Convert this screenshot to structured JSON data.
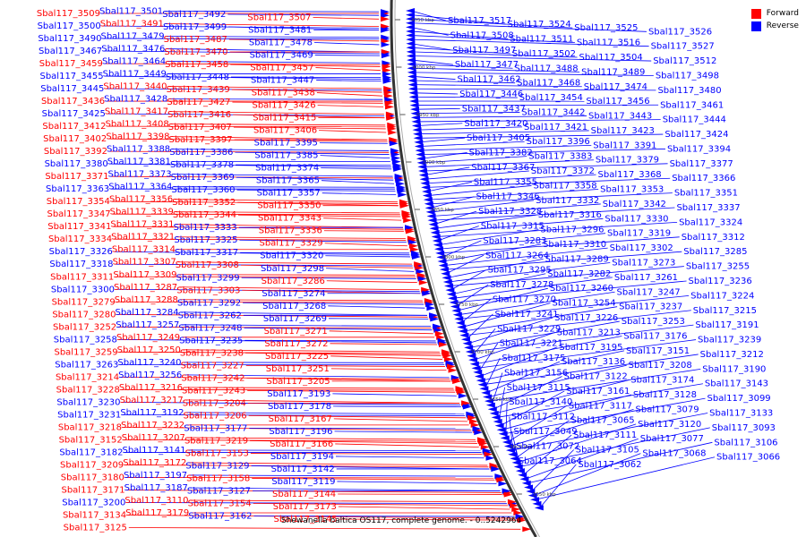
{
  "caption": "Shewanella baltica OS117, complete genome. - 0..5242964",
  "legend": [
    {
      "label": "Forward",
      "color": "#ff0000"
    },
    {
      "label": "Reverse",
      "color": "#0000ff"
    }
  ],
  "scale_ticks": [
    "4050 kbp",
    "4000 kbp",
    "3950 kbp",
    "3900 kbp",
    "3850 kbp",
    "3800 kbp",
    "3750 kbp",
    "3700 kbp",
    "3650 kbp",
    "3600 kbp",
    "3550 kbp"
  ],
  "left_genes": [
    {
      "name": "Sbal117_3509",
      "strand": "F"
    },
    {
      "name": "Sbal117_3501",
      "strand": "R"
    },
    {
      "name": "Sbal117_3492",
      "strand": "R"
    },
    {
      "name": "Sbal117_3507",
      "strand": "F"
    },
    {
      "name": "Sbal117_3500",
      "strand": "R"
    },
    {
      "name": "Sbal117_3491",
      "strand": "F"
    },
    {
      "name": "Sbal117_3499",
      "strand": "R"
    },
    {
      "name": "Sbal117_3481",
      "strand": "R"
    },
    {
      "name": "Sbal117_3490",
      "strand": "R"
    },
    {
      "name": "Sbal117_3479",
      "strand": "R"
    },
    {
      "name": "Sbal117_3487",
      "strand": "F"
    },
    {
      "name": "Sbal117_3478",
      "strand": "R"
    },
    {
      "name": "Sbal117_3467",
      "strand": "R"
    },
    {
      "name": "Sbal117_3476",
      "strand": "R"
    },
    {
      "name": "Sbal117_3470",
      "strand": "F"
    },
    {
      "name": "Sbal117_3469",
      "strand": "R"
    },
    {
      "name": "Sbal117_3459",
      "strand": "F"
    },
    {
      "name": "Sbal117_3464",
      "strand": "R"
    },
    {
      "name": "Sbal117_3458",
      "strand": "F"
    },
    {
      "name": "Sbal117_3457",
      "strand": "F"
    },
    {
      "name": "Sbal117_3455",
      "strand": "R"
    },
    {
      "name": "Sbal117_3449",
      "strand": "R"
    },
    {
      "name": "Sbal117_3448",
      "strand": "R"
    },
    {
      "name": "Sbal117_3447",
      "strand": "R"
    },
    {
      "name": "Sbal117_3445",
      "strand": "R"
    },
    {
      "name": "Sbal117_3440",
      "strand": "F"
    },
    {
      "name": "Sbal117_3439",
      "strand": "F"
    },
    {
      "name": "Sbal117_3438",
      "strand": "F"
    },
    {
      "name": "Sbal117_3436",
      "strand": "F"
    },
    {
      "name": "Sbal117_3428",
      "strand": "R"
    },
    {
      "name": "Sbal117_3427",
      "strand": "F"
    },
    {
      "name": "Sbal117_3426",
      "strand": "F"
    },
    {
      "name": "Sbal117_3425",
      "strand": "R"
    },
    {
      "name": "Sbal117_3417",
      "strand": "F"
    },
    {
      "name": "Sbal117_3416",
      "strand": "F"
    },
    {
      "name": "Sbal117_3415",
      "strand": "F"
    },
    {
      "name": "Sbal117_3412",
      "strand": "F"
    },
    {
      "name": "Sbal117_3408",
      "strand": "F"
    },
    {
      "name": "Sbal117_3407",
      "strand": "F"
    },
    {
      "name": "Sbal117_3406",
      "strand": "F"
    },
    {
      "name": "Sbal117_3402",
      "strand": "F"
    },
    {
      "name": "Sbal117_3398",
      "strand": "F"
    },
    {
      "name": "Sbal117_3397",
      "strand": "F"
    },
    {
      "name": "Sbal117_3395",
      "strand": "R"
    },
    {
      "name": "Sbal117_3392",
      "strand": "F"
    },
    {
      "name": "Sbal117_3388",
      "strand": "R"
    },
    {
      "name": "Sbal117_3386",
      "strand": "R"
    },
    {
      "name": "Sbal117_3385",
      "strand": "R"
    },
    {
      "name": "Sbal117_3380",
      "strand": "R"
    },
    {
      "name": "Sbal117_3381",
      "strand": "R"
    },
    {
      "name": "Sbal117_3378",
      "strand": "R"
    },
    {
      "name": "Sbal117_3374",
      "strand": "R"
    },
    {
      "name": "Sbal117_3371",
      "strand": "F"
    },
    {
      "name": "Sbal117_3373",
      "strand": "R"
    },
    {
      "name": "Sbal117_3369",
      "strand": "R"
    },
    {
      "name": "Sbal117_3365",
      "strand": "R"
    },
    {
      "name": "Sbal117_3363",
      "strand": "R"
    },
    {
      "name": "Sbal117_3364",
      "strand": "R"
    },
    {
      "name": "Sbal117_3360",
      "strand": "R"
    },
    {
      "name": "Sbal117_3357",
      "strand": "R"
    },
    {
      "name": "Sbal117_3354",
      "strand": "F"
    },
    {
      "name": "Sbal117_3356",
      "strand": "F"
    },
    {
      "name": "Sbal117_3352",
      "strand": "F"
    },
    {
      "name": "Sbal117_3350",
      "strand": "F"
    },
    {
      "name": "Sbal117_3347",
      "strand": "F"
    },
    {
      "name": "Sbal117_3339",
      "strand": "F"
    },
    {
      "name": "Sbal117_3344",
      "strand": "F"
    },
    {
      "name": "Sbal117_3343",
      "strand": "F"
    },
    {
      "name": "Sbal117_3341",
      "strand": "F"
    },
    {
      "name": "Sbal117_3331",
      "strand": "F"
    },
    {
      "name": "Sbal117_3333",
      "strand": "R"
    },
    {
      "name": "Sbal117_3336",
      "strand": "F"
    },
    {
      "name": "Sbal117_3334",
      "strand": "F"
    },
    {
      "name": "Sbal117_3321",
      "strand": "F"
    },
    {
      "name": "Sbal117_3325",
      "strand": "R"
    },
    {
      "name": "Sbal117_3329",
      "strand": "F"
    },
    {
      "name": "Sbal117_3326",
      "strand": "R"
    },
    {
      "name": "Sbal117_3314",
      "strand": "F"
    },
    {
      "name": "Sbal117_3317",
      "strand": "R"
    },
    {
      "name": "Sbal117_3320",
      "strand": "R"
    },
    {
      "name": "Sbal117_3318",
      "strand": "R"
    },
    {
      "name": "Sbal117_3307",
      "strand": "F"
    },
    {
      "name": "Sbal117_3308",
      "strand": "F"
    },
    {
      "name": "Sbal117_3298",
      "strand": "R"
    },
    {
      "name": "Sbal117_3311",
      "strand": "F"
    },
    {
      "name": "Sbal117_3309",
      "strand": "F"
    },
    {
      "name": "Sbal117_3299",
      "strand": "R"
    },
    {
      "name": "Sbal117_3286",
      "strand": "F"
    },
    {
      "name": "Sbal117_3300",
      "strand": "R"
    },
    {
      "name": "Sbal117_3287",
      "strand": "F"
    },
    {
      "name": "Sbal117_3303",
      "strand": "F"
    },
    {
      "name": "Sbal117_3274",
      "strand": "R"
    },
    {
      "name": "Sbal117_3279",
      "strand": "F"
    },
    {
      "name": "Sbal117_3288",
      "strand": "F"
    },
    {
      "name": "Sbal117_3292",
      "strand": "R"
    },
    {
      "name": "Sbal117_3268",
      "strand": "R"
    },
    {
      "name": "Sbal117_3280",
      "strand": "F"
    },
    {
      "name": "Sbal117_3284",
      "strand": "R"
    },
    {
      "name": "Sbal117_3262",
      "strand": "R"
    },
    {
      "name": "Sbal117_3269",
      "strand": "R"
    },
    {
      "name": "Sbal117_3252",
      "strand": "F"
    },
    {
      "name": "Sbal117_3257",
      "strand": "R"
    },
    {
      "name": "Sbal117_3248",
      "strand": "R"
    },
    {
      "name": "Sbal117_3271",
      "strand": "F"
    },
    {
      "name": "Sbal117_3258",
      "strand": "R"
    },
    {
      "name": "Sbal117_3249",
      "strand": "F"
    },
    {
      "name": "Sbal117_3235",
      "strand": "R"
    },
    {
      "name": "Sbal117_3272",
      "strand": "F"
    },
    {
      "name": "Sbal117_3259",
      "strand": "F"
    },
    {
      "name": "Sbal117_3250",
      "strand": "F"
    },
    {
      "name": "Sbal117_3238",
      "strand": "F"
    },
    {
      "name": "Sbal117_3225",
      "strand": "F"
    },
    {
      "name": "Sbal117_3263",
      "strand": "R"
    },
    {
      "name": "Sbal117_3240",
      "strand": "R"
    },
    {
      "name": "Sbal117_3227",
      "strand": "F"
    },
    {
      "name": "Sbal117_3251",
      "strand": "F"
    },
    {
      "name": "Sbal117_3214",
      "strand": "F"
    },
    {
      "name": "Sbal117_3256",
      "strand": "R"
    },
    {
      "name": "Sbal117_3242",
      "strand": "F"
    },
    {
      "name": "Sbal117_3205",
      "strand": "F"
    },
    {
      "name": "Sbal117_3228",
      "strand": "F"
    },
    {
      "name": "Sbal117_3216",
      "strand": "F"
    },
    {
      "name": "Sbal117_3243",
      "strand": "F"
    },
    {
      "name": "Sbal117_3193",
      "strand": "R"
    },
    {
      "name": "Sbal117_3230",
      "strand": "R"
    },
    {
      "name": "Sbal117_3217",
      "strand": "F"
    },
    {
      "name": "Sbal117_3204",
      "strand": "F"
    },
    {
      "name": "Sbal117_3178",
      "strand": "R"
    },
    {
      "name": "Sbal117_3231",
      "strand": "R"
    },
    {
      "name": "Sbal117_3192",
      "strand": "R"
    },
    {
      "name": "Sbal117_3206",
      "strand": "F"
    },
    {
      "name": "Sbal117_3167",
      "strand": "F"
    },
    {
      "name": "Sbal117_3218",
      "strand": "F"
    },
    {
      "name": "Sbal117_3232",
      "strand": "F"
    },
    {
      "name": "Sbal117_3177",
      "strand": "R"
    },
    {
      "name": "Sbal117_3196",
      "strand": "R"
    },
    {
      "name": "Sbal117_3152",
      "strand": "F"
    },
    {
      "name": "Sbal117_3207",
      "strand": "F"
    },
    {
      "name": "Sbal117_3219",
      "strand": "F"
    },
    {
      "name": "Sbal117_3166",
      "strand": "F"
    },
    {
      "name": "Sbal117_3182",
      "strand": "R"
    },
    {
      "name": "Sbal117_3141",
      "strand": "R"
    },
    {
      "name": "Sbal117_3153",
      "strand": "F"
    },
    {
      "name": "Sbal117_3194",
      "strand": "R"
    },
    {
      "name": "Sbal117_3209",
      "strand": "F"
    },
    {
      "name": "Sbal117_3172",
      "strand": "F"
    },
    {
      "name": "Sbal117_3129",
      "strand": "R"
    },
    {
      "name": "Sbal117_3142",
      "strand": "R"
    },
    {
      "name": "Sbal117_3180",
      "strand": "F"
    },
    {
      "name": "Sbal117_3197",
      "strand": "R"
    },
    {
      "name": "Sbal117_3158",
      "strand": "F"
    },
    {
      "name": "Sbal117_3119",
      "strand": "R"
    },
    {
      "name": "Sbal117_3171",
      "strand": "F"
    },
    {
      "name": "Sbal117_3187",
      "strand": "R"
    },
    {
      "name": "Sbal117_3127",
      "strand": "R"
    },
    {
      "name": "Sbal117_3144",
      "strand": "F"
    },
    {
      "name": "Sbal117_3200",
      "strand": "R"
    },
    {
      "name": "Sbal117_3110",
      "strand": "F"
    },
    {
      "name": "Sbal117_3154",
      "strand": "F"
    },
    {
      "name": "Sbal117_3173",
      "strand": "F"
    },
    {
      "name": "Sbal117_3134",
      "strand": "F"
    },
    {
      "name": "Sbal117_3179",
      "strand": "F"
    },
    {
      "name": "Sbal117_3162",
      "strand": "R"
    },
    {
      "name": "Sbal117_3145",
      "strand": "F"
    },
    {
      "name": "Sbal117_3125",
      "strand": "F"
    }
  ],
  "right_genes": [
    {
      "name": "Sbal117_3517",
      "strand": "R"
    },
    {
      "name": "Sbal117_3524",
      "strand": "R"
    },
    {
      "name": "Sbal117_3525",
      "strand": "R"
    },
    {
      "name": "Sbal117_3526",
      "strand": "R"
    },
    {
      "name": "Sbal117_3508",
      "strand": "R"
    },
    {
      "name": "Sbal117_3511",
      "strand": "R"
    },
    {
      "name": "Sbal117_3516",
      "strand": "R"
    },
    {
      "name": "Sbal117_3527",
      "strand": "R"
    },
    {
      "name": "Sbal117_3497",
      "strand": "R"
    },
    {
      "name": "Sbal117_3502",
      "strand": "R"
    },
    {
      "name": "Sbal117_3504",
      "strand": "R"
    },
    {
      "name": "Sbal117_3512",
      "strand": "R"
    },
    {
      "name": "Sbal117_3477",
      "strand": "R"
    },
    {
      "name": "Sbal117_3488",
      "strand": "R"
    },
    {
      "name": "Sbal117_3489",
      "strand": "R"
    },
    {
      "name": "Sbal117_3498",
      "strand": "R"
    },
    {
      "name": "Sbal117_3462",
      "strand": "R"
    },
    {
      "name": "Sbal117_3468",
      "strand": "R"
    },
    {
      "name": "Sbal117_3474",
      "strand": "R"
    },
    {
      "name": "Sbal117_3480",
      "strand": "R"
    },
    {
      "name": "Sbal117_3446",
      "strand": "R"
    },
    {
      "name": "Sbal117_3454",
      "strand": "R"
    },
    {
      "name": "Sbal117_3456",
      "strand": "R"
    },
    {
      "name": "Sbal117_3461",
      "strand": "R"
    },
    {
      "name": "Sbal117_3437",
      "strand": "R"
    },
    {
      "name": "Sbal117_3442",
      "strand": "R"
    },
    {
      "name": "Sbal117_3443",
      "strand": "R"
    },
    {
      "name": "Sbal117_3444",
      "strand": "R"
    },
    {
      "name": "Sbal117_3420",
      "strand": "R"
    },
    {
      "name": "Sbal117_3421",
      "strand": "R"
    },
    {
      "name": "Sbal117_3423",
      "strand": "R"
    },
    {
      "name": "Sbal117_3424",
      "strand": "R"
    },
    {
      "name": "Sbal117_3405",
      "strand": "R"
    },
    {
      "name": "Sbal117_3396",
      "strand": "R"
    },
    {
      "name": "Sbal117_3391",
      "strand": "R"
    },
    {
      "name": "Sbal117_3394",
      "strand": "R"
    },
    {
      "name": "Sbal117_3382",
      "strand": "R"
    },
    {
      "name": "Sbal117_3383",
      "strand": "R"
    },
    {
      "name": "Sbal117_3379",
      "strand": "R"
    },
    {
      "name": "Sbal117_3377",
      "strand": "R"
    },
    {
      "name": "Sbal117_3367",
      "strand": "R"
    },
    {
      "name": "Sbal117_3372",
      "strand": "R"
    },
    {
      "name": "Sbal117_3368",
      "strand": "R"
    },
    {
      "name": "Sbal117_3366",
      "strand": "R"
    },
    {
      "name": "Sbal117_3355",
      "strand": "R"
    },
    {
      "name": "Sbal117_3358",
      "strand": "R"
    },
    {
      "name": "Sbal117_3353",
      "strand": "R"
    },
    {
      "name": "Sbal117_3351",
      "strand": "R"
    },
    {
      "name": "Sbal117_3346",
      "strand": "R"
    },
    {
      "name": "Sbal117_3332",
      "strand": "R"
    },
    {
      "name": "Sbal117_3342",
      "strand": "R"
    },
    {
      "name": "Sbal117_3337",
      "strand": "R"
    },
    {
      "name": "Sbal117_3328",
      "strand": "R"
    },
    {
      "name": "Sbal117_3316",
      "strand": "R"
    },
    {
      "name": "Sbal117_3330",
      "strand": "R"
    },
    {
      "name": "Sbal117_3324",
      "strand": "R"
    },
    {
      "name": "Sbal117_3315",
      "strand": "R"
    },
    {
      "name": "Sbal117_3296",
      "strand": "R"
    },
    {
      "name": "Sbal117_3319",
      "strand": "R"
    },
    {
      "name": "Sbal117_3312",
      "strand": "R"
    },
    {
      "name": "Sbal117_3283",
      "strand": "R"
    },
    {
      "name": "Sbal117_3310",
      "strand": "R"
    },
    {
      "name": "Sbal117_3302",
      "strand": "R"
    },
    {
      "name": "Sbal117_3285",
      "strand": "R"
    },
    {
      "name": "Sbal117_3264",
      "strand": "R"
    },
    {
      "name": "Sbal117_3289",
      "strand": "R"
    },
    {
      "name": "Sbal117_3273",
      "strand": "R"
    },
    {
      "name": "Sbal117_3255",
      "strand": "R"
    },
    {
      "name": "Sbal117_3295",
      "strand": "R"
    },
    {
      "name": "Sbal117_3282",
      "strand": "R"
    },
    {
      "name": "Sbal117_3261",
      "strand": "R"
    },
    {
      "name": "Sbal117_3236",
      "strand": "R"
    },
    {
      "name": "Sbal117_3278",
      "strand": "R"
    },
    {
      "name": "Sbal117_3260",
      "strand": "R"
    },
    {
      "name": "Sbal117_3247",
      "strand": "R"
    },
    {
      "name": "Sbal117_3224",
      "strand": "R"
    },
    {
      "name": "Sbal117_3270",
      "strand": "R"
    },
    {
      "name": "Sbal117_3254",
      "strand": "R"
    },
    {
      "name": "Sbal117_3237",
      "strand": "R"
    },
    {
      "name": "Sbal117_3215",
      "strand": "R"
    },
    {
      "name": "Sbal117_3241",
      "strand": "R"
    },
    {
      "name": "Sbal117_3226",
      "strand": "R"
    },
    {
      "name": "Sbal117_3253",
      "strand": "R"
    },
    {
      "name": "Sbal117_3191",
      "strand": "R"
    },
    {
      "name": "Sbal117_3229",
      "strand": "R"
    },
    {
      "name": "Sbal117_3213",
      "strand": "R"
    },
    {
      "name": "Sbal117_3176",
      "strand": "R"
    },
    {
      "name": "Sbal117_3239",
      "strand": "R"
    },
    {
      "name": "Sbal117_3221",
      "strand": "R"
    },
    {
      "name": "Sbal117_3195",
      "strand": "R"
    },
    {
      "name": "Sbal117_3151",
      "strand": "R"
    },
    {
      "name": "Sbal117_3212",
      "strand": "R"
    },
    {
      "name": "Sbal117_3175",
      "strand": "R"
    },
    {
      "name": "Sbal117_3136",
      "strand": "R"
    },
    {
      "name": "Sbal117_3208",
      "strand": "R"
    },
    {
      "name": "Sbal117_3190",
      "strand": "R"
    },
    {
      "name": "Sbal117_3156",
      "strand": "R"
    },
    {
      "name": "Sbal117_3122",
      "strand": "R"
    },
    {
      "name": "Sbal117_3174",
      "strand": "R"
    },
    {
      "name": "Sbal117_3143",
      "strand": "R"
    },
    {
      "name": "Sbal117_3115",
      "strand": "R"
    },
    {
      "name": "Sbal117_3161",
      "strand": "R"
    },
    {
      "name": "Sbal117_3128",
      "strand": "R"
    },
    {
      "name": "Sbal117_3099",
      "strand": "R"
    },
    {
      "name": "Sbal117_3140",
      "strand": "R"
    },
    {
      "name": "Sbal117_3117",
      "strand": "R"
    },
    {
      "name": "Sbal117_3079",
      "strand": "R"
    },
    {
      "name": "Sbal117_3133",
      "strand": "R"
    },
    {
      "name": "Sbal117_3112",
      "strand": "R"
    },
    {
      "name": "Sbal117_3065",
      "strand": "R"
    },
    {
      "name": "Sbal117_3120",
      "strand": "R"
    },
    {
      "name": "Sbal117_3093",
      "strand": "R"
    },
    {
      "name": "Sbal117_3049",
      "strand": "R"
    },
    {
      "name": "Sbal117_3111",
      "strand": "R"
    },
    {
      "name": "Sbal117_3077",
      "strand": "R"
    },
    {
      "name": "Sbal117_3106",
      "strand": "R"
    },
    {
      "name": "Sbal117_3072",
      "strand": "R"
    },
    {
      "name": "Sbal117_3105",
      "strand": "R"
    },
    {
      "name": "Sbal117_3068",
      "strand": "R"
    },
    {
      "name": "Sbal117_3066",
      "strand": "R"
    },
    {
      "name": "Sbal117_3064",
      "strand": "R"
    },
    {
      "name": "Sbal117_3062",
      "strand": "R"
    }
  ]
}
